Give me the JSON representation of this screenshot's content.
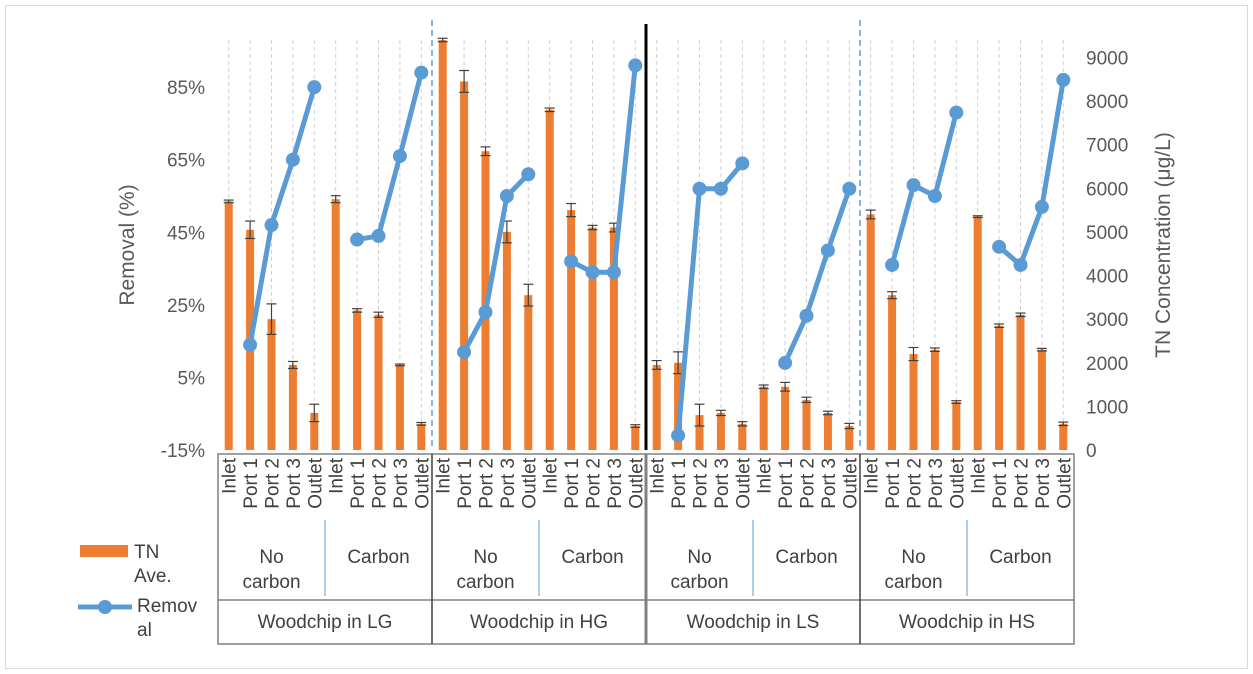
{
  "chart_data": {
    "type": "bar",
    "ylabel": "Removal (%)",
    "y2label": "TN Concentration (μg/L)",
    "ylim": [
      -15,
      98
    ],
    "y2lim": [
      0,
      9400
    ],
    "yticks": [
      "-15%",
      "5%",
      "25%",
      "45%",
      "65%",
      "85%"
    ],
    "y2ticks": [
      "0",
      "1000",
      "2000",
      "3000",
      "4000",
      "5000",
      "6000",
      "7000",
      "8000",
      "9000"
    ],
    "ports": [
      "Inlet",
      "Port 1",
      "Port 2",
      "Port 3",
      "Outlet"
    ],
    "groups": [
      {
        "label": "Woodchip in LG",
        "subgroups": [
          "No carbon",
          "Carbon"
        ]
      },
      {
        "label": "Woodchip in HG",
        "subgroups": [
          "No carbon",
          "Carbon"
        ]
      },
      {
        "label": "Woodchip in LS",
        "subgroups": [
          "No carbon",
          "Carbon"
        ]
      },
      {
        "label": "Woodchip in HS",
        "subgroups": [
          "No carbon",
          "Carbon"
        ]
      }
    ],
    "legend": [
      "TN Ave.",
      "Removal"
    ],
    "series": [
      {
        "name": "TN Ave.",
        "kind": "bar",
        "axis": "right",
        "color": "#ED7D31",
        "values": [
          5700,
          5050,
          3000,
          1950,
          850,
          5750,
          3200,
          3100,
          1950,
          600,
          9400,
          8450,
          6850,
          5000,
          3550,
          7800,
          5500,
          5100,
          5100,
          550,
          1950,
          2000,
          800,
          850,
          600,
          1450,
          1450,
          1150,
          850,
          550,
          5400,
          3550,
          2200,
          2300,
          1100,
          5350,
          2850,
          3100,
          2300,
          600
        ],
        "errors": [
          30,
          200,
          350,
          80,
          200,
          80,
          40,
          60,
          20,
          30,
          40,
          250,
          100,
          250,
          250,
          40,
          150,
          50,
          100,
          30,
          100,
          250,
          250,
          60,
          50,
          40,
          100,
          60,
          40,
          60,
          100,
          80,
          150,
          40,
          30,
          20,
          40,
          40,
          30,
          40
        ]
      },
      {
        "name": "Removal",
        "kind": "line",
        "axis": "left",
        "color": "#5B9BD5",
        "values": [
          null,
          14,
          47,
          65,
          85,
          null,
          43,
          44,
          66,
          89,
          null,
          12,
          23,
          55,
          61,
          null,
          37,
          34,
          34,
          91,
          null,
          -11,
          57,
          57,
          64,
          null,
          9,
          22,
          40,
          57,
          null,
          36,
          58,
          55,
          78,
          null,
          41,
          36,
          52,
          87
        ]
      }
    ]
  }
}
